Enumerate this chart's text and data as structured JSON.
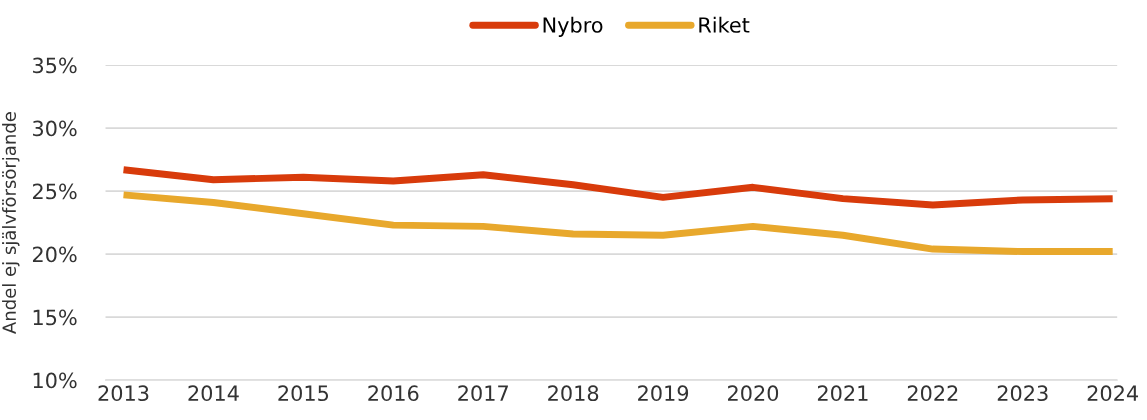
{
  "chart_data": {
    "type": "line",
    "ylabel": "Andel ej självförsörjande",
    "categories": [
      "2013",
      "2014",
      "2015",
      "2016",
      "2017",
      "2018",
      "2019",
      "2020",
      "2021",
      "2022",
      "2023",
      "2024"
    ],
    "series": [
      {
        "name": "Nybro",
        "color": "#d83b0b",
        "values": [
          26.7,
          25.9,
          26.1,
          25.8,
          26.3,
          25.5,
          24.5,
          25.3,
          24.4,
          23.9,
          24.3,
          24.4
        ]
      },
      {
        "name": "Riket",
        "color": "#e8a82c",
        "values": [
          24.7,
          24.1,
          23.2,
          22.3,
          22.2,
          21.6,
          21.5,
          22.2,
          21.5,
          20.4,
          20.2,
          20.2
        ]
      }
    ],
    "ylim": [
      10,
      35
    ],
    "yticks": [
      {
        "value": 10,
        "label": "10%"
      },
      {
        "value": 15,
        "label": "15%"
      },
      {
        "value": 20,
        "label": "20%"
      },
      {
        "value": 25,
        "label": "25%"
      },
      {
        "value": 30,
        "label": "30%"
      },
      {
        "value": 35,
        "label": "35%"
      }
    ],
    "grid": "y",
    "legend": "top",
    "marker": "none",
    "line_style": "solid"
  }
}
